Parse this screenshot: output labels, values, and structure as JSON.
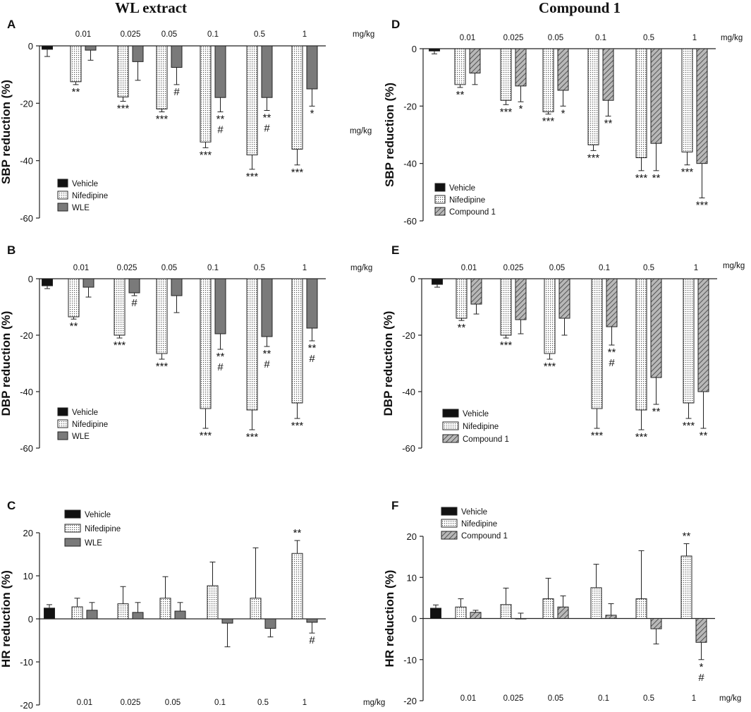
{
  "headings": {
    "left": "WL extract",
    "right": "Compound  1"
  },
  "legend_items": {
    "vehicle": "Vehicle",
    "nifedipine": "Nifedipine",
    "wle": "WLE",
    "compound": "Compound 1"
  },
  "colors": {
    "vehicle": "#111111",
    "nifedipine": "#ffffff",
    "wle": "#7a7a7a",
    "compound": "#9a9a9a",
    "axis": "#222222"
  },
  "chart_data": [
    {
      "panel": "A",
      "type": "bar",
      "ylabel": "SBP reduction (%)",
      "categories": [
        "0.01",
        "0.025",
        "0.05",
        "0.1",
        "0.5",
        "1"
      ],
      "dose_unit": "mg/kg",
      "extra_label": "mg/kg",
      "ylim": [
        -60,
        0
      ],
      "ticks": [
        0,
        -20,
        -40,
        -60
      ],
      "dose_position": "top",
      "vehicle": {
        "name": "Vehicle",
        "value": -1.2,
        "error": 2.5
      },
      "series": [
        {
          "name": "Nifedipine",
          "kind": "nif",
          "values": [
            -12.5,
            -17.8,
            -22,
            -33.5,
            -38,
            -36
          ],
          "errors": [
            1,
            1.5,
            1,
            2,
            5,
            5.5
          ],
          "labels": [
            "**",
            "***",
            "***",
            "***",
            "***",
            "***"
          ]
        },
        {
          "name": "WLE",
          "kind": "wle",
          "values": [
            -1.5,
            -5.5,
            -7.5,
            -18,
            -18,
            -15
          ],
          "errors": [
            3.5,
            6.5,
            6,
            5,
            4.5,
            6
          ],
          "labels": [
            "",
            "",
            "#",
            "**\n#",
            "**\n#",
            "*"
          ]
        }
      ]
    },
    {
      "panel": "B",
      "type": "bar",
      "ylabel": "DBP reduction (%)",
      "categories": [
        "0.01",
        "0.025",
        "0.05",
        "0.1",
        "0.5",
        "1"
      ],
      "dose_unit": "mg/kg",
      "ylim": [
        -60,
        0
      ],
      "ticks": [
        0,
        -20,
        -40,
        -60
      ],
      "dose_position": "top",
      "vehicle": {
        "name": "Vehicle",
        "value": -2.5,
        "error": 1
      },
      "series": [
        {
          "name": "Nifedipine",
          "kind": "nif",
          "values": [
            -13.5,
            -20,
            -26.5,
            -46,
            -46.5,
            -44
          ],
          "errors": [
            0.8,
            1,
            2,
            7,
            7,
            5.5
          ],
          "labels": [
            "**",
            "***",
            "***",
            "***",
            "***",
            "***"
          ]
        },
        {
          "name": "WLE",
          "kind": "wle",
          "values": [
            -3,
            -5,
            -6,
            -19.5,
            -20.5,
            -17.5
          ],
          "errors": [
            3.5,
            1,
            6,
            5.5,
            3.5,
            4.5
          ],
          "labels": [
            "",
            "#",
            "",
            "**\n#",
            "**\n#",
            "**\n#"
          ]
        }
      ]
    },
    {
      "panel": "C",
      "type": "bar",
      "ylabel": "HR reduction (%)",
      "categories": [
        "0.01",
        "0.025",
        "0.05",
        "0.1",
        "0.5",
        "1"
      ],
      "dose_unit": "mg/kg",
      "ylim": [
        -20,
        20
      ],
      "ticks": [
        20,
        10,
        0,
        -10,
        -20
      ],
      "dose_position": "bottom",
      "vehicle": {
        "name": "Vehicle",
        "value": 2.5,
        "error": 0.8
      },
      "series": [
        {
          "name": "Nifedipine",
          "kind": "nif",
          "values": [
            2.8,
            3.5,
            4.8,
            7.7,
            4.8,
            15.2
          ],
          "errors": [
            2,
            4,
            5,
            5.5,
            11.7,
            3
          ],
          "labels": [
            "",
            "",
            "",
            "",
            "",
            "**"
          ]
        },
        {
          "name": "WLE",
          "kind": "wle",
          "values": [
            2,
            1.5,
            1.8,
            -1,
            -2.2,
            -0.8
          ],
          "errors": [
            1.8,
            2.3,
            2,
            5.5,
            2,
            2.5
          ],
          "labels": [
            "",
            "",
            "",
            "",
            "",
            "#"
          ]
        }
      ]
    },
    {
      "panel": "D",
      "type": "bar",
      "ylabel": "SBP reduction (%)",
      "categories": [
        "0.01",
        "0.025",
        "0.05",
        "0.1",
        "0.5",
        "1"
      ],
      "dose_unit": "mg/kg",
      "ylim": [
        -60,
        0
      ],
      "ticks": [
        0,
        -20,
        -40,
        -60
      ],
      "dose_position": "top",
      "vehicle": {
        "name": "Vehicle",
        "value": -0.8,
        "error": 1
      },
      "series": [
        {
          "name": "Nifedipine",
          "kind": "nif",
          "values": [
            -12.5,
            -18,
            -22,
            -33.5,
            -38,
            -36
          ],
          "errors": [
            1,
            1.5,
            0.8,
            2,
            4.5,
            4.5
          ],
          "labels": [
            "**",
            "***",
            "***",
            "***",
            "***",
            "***"
          ]
        },
        {
          "name": "Compound 1",
          "kind": "cmp",
          "values": [
            -8.5,
            -13,
            -14.5,
            -18,
            -33,
            -40
          ],
          "errors": [
            4,
            5.5,
            5.5,
            5.5,
            9.5,
            12
          ],
          "labels": [
            "",
            "*",
            "*",
            "**",
            "**",
            "***"
          ]
        }
      ]
    },
    {
      "panel": "E",
      "type": "bar",
      "ylabel": "DBP reduction (%)",
      "categories": [
        "0.01",
        "0.025",
        "0.05",
        "0.1",
        "0.5",
        "1"
      ],
      "dose_unit": "mg/kg",
      "ylim": [
        -60,
        0
      ],
      "ticks": [
        0,
        -20,
        -40,
        -60
      ],
      "dose_position": "top",
      "vehicle": {
        "name": "Vehicle",
        "value": -2,
        "error": 1
      },
      "series": [
        {
          "name": "Nifedipine",
          "kind": "nif",
          "values": [
            -14,
            -20,
            -26.5,
            -46,
            -46.5,
            -44
          ],
          "errors": [
            0.8,
            1,
            2,
            7,
            7,
            5.5
          ],
          "labels": [
            "**",
            "***",
            "***",
            "***",
            "***",
            "***"
          ]
        },
        {
          "name": "Compound 1",
          "kind": "cmp",
          "values": [
            -9,
            -14.5,
            -14,
            -17,
            -35,
            -40
          ],
          "errors": [
            3.5,
            5,
            6,
            6.5,
            9.5,
            13
          ],
          "labels": [
            "",
            "",
            "",
            "**\n#",
            "**",
            "**"
          ]
        }
      ]
    },
    {
      "panel": "F",
      "type": "bar",
      "ylabel": "HR reduction (%)",
      "categories": [
        "0.01",
        "0.025",
        "0.05",
        "0.1",
        "0.5",
        "1"
      ],
      "dose_unit": "mg/kg",
      "ylim": [
        -20,
        20
      ],
      "ticks": [
        20,
        10,
        0,
        -10,
        -20
      ],
      "dose_position": "bottom",
      "vehicle": {
        "name": "Vehicle",
        "value": 2.5,
        "error": 0.8
      },
      "series": [
        {
          "name": "Nifedipine",
          "kind": "nif",
          "values": [
            2.8,
            3.4,
            4.8,
            7.5,
            4.8,
            15.2
          ],
          "errors": [
            2,
            4,
            5,
            5.7,
            11.7,
            3
          ],
          "labels": [
            "",
            "",
            "",
            "",
            "",
            "**"
          ]
        },
        {
          "name": "Compound 1",
          "kind": "cmp",
          "values": [
            1.5,
            0,
            2.8,
            0.8,
            -2.5,
            -5.8
          ],
          "errors": [
            0.5,
            1.3,
            2.7,
            2.8,
            3.7,
            4.2
          ],
          "labels": [
            "",
            "",
            "",
            "",
            "",
            "*\n#"
          ]
        }
      ]
    }
  ]
}
